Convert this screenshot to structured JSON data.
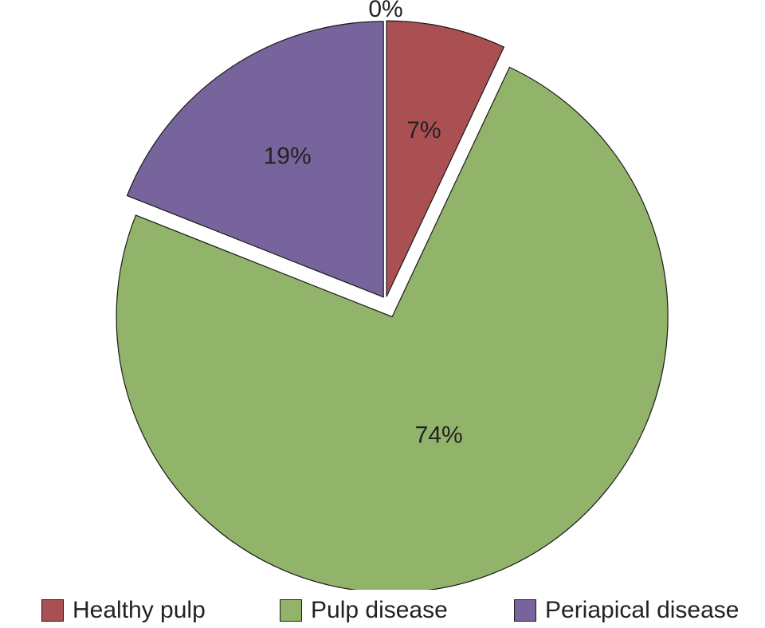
{
  "chart_data": {
    "type": "pie",
    "title": "",
    "slices": [
      {
        "label": "Healthy pulp",
        "value": 7,
        "display": "7%",
        "color": "#ab5052",
        "exploded": false
      },
      {
        "label": "Pulp disease",
        "value": 74,
        "display": "74%",
        "color": "#91b46a",
        "exploded": true
      },
      {
        "label": "Periapical disease",
        "value": 19,
        "display": "19%",
        "color": "#77649c",
        "exploded": false
      },
      {
        "label": "",
        "value": 0,
        "display": "0%",
        "color": "#cccccc",
        "exploded": false
      }
    ],
    "legend_position": "bottom"
  }
}
